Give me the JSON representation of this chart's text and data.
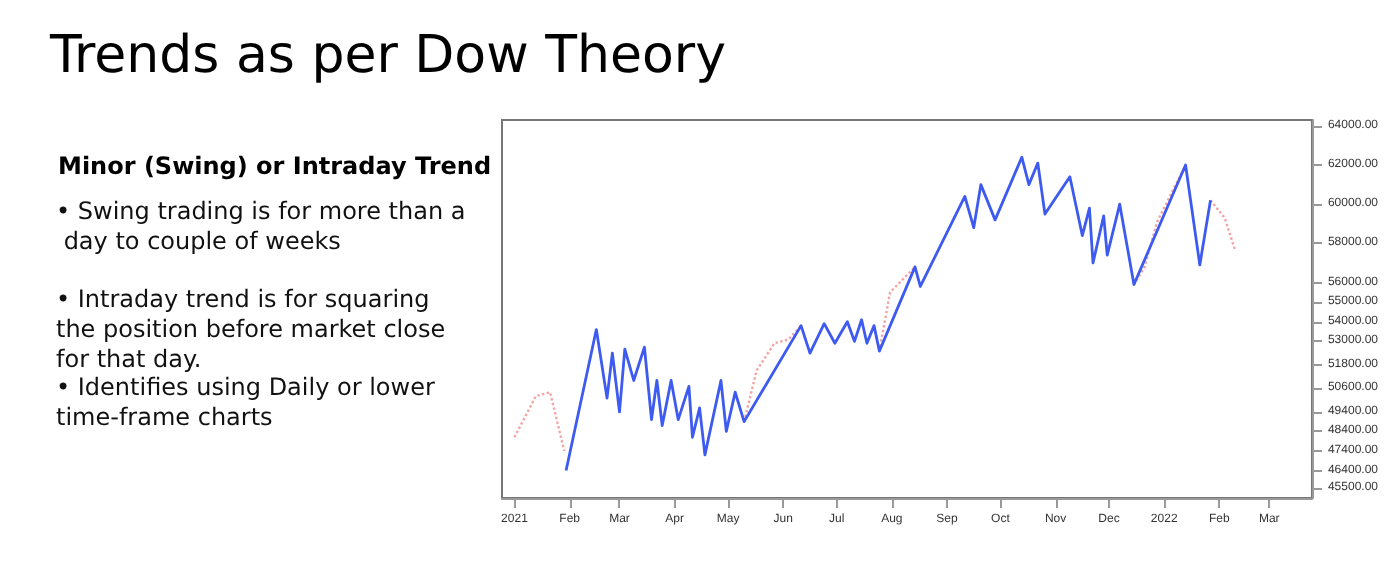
{
  "chart_data": {
    "type": "line",
    "title": "Trends as per Dow Theory",
    "subtitle": "Minor (Swing) or Intraday Trend",
    "annotations": [
      "• Swing trading is for more than a day to couple of weeks",
      "• Intraday trend is for squaring the position before market close for that day.",
      "• Identifies using Daily or lower time-frame charts"
    ],
    "series": [
      {
        "color": "#f4a3a3",
        "line_style": "dotted",
        "x": [
          "2021-01-01",
          "2021-01-13",
          "2021-01-21",
          "2021-01-29",
          "2021-04-01",
          "2021-05-10",
          "2021-05-17",
          "2021-05-27",
          "2021-06-04",
          "2021-06-11",
          "2021-07-20",
          "2021-07-25",
          "2021-07-31",
          "2021-08-14",
          "2021-10-01",
          "2021-12-15",
          "2021-12-21",
          "2021-12-28",
          "2022-01-13",
          "2022-01-20",
          "2022-01-27",
          "2022-02-04",
          "2022-02-10"
        ],
        "values": [
          48100,
          50200,
          50400,
          47400,
          null,
          48900,
          51500,
          52900,
          53100,
          53800,
          null,
          52500,
          55500,
          56800,
          null,
          55900,
          56800,
          59100,
          62000,
          null,
          60200,
          59300,
          57600
        ]
      },
      {
        "color": "#3d5af1",
        "line_style": "solid",
        "x": [
          "2021-01-30",
          "2021-02-16",
          "2021-02-22",
          "2021-02-25",
          "2021-03-01",
          "2021-03-04",
          "2021-03-09",
          "2021-03-15",
          "2021-03-19",
          "2021-03-22",
          "2021-03-25",
          "2021-03-30",
          "2021-04-03",
          "2021-04-09",
          "2021-04-11",
          "2021-04-15",
          "2021-04-18",
          "2021-04-27",
          "2021-04-30",
          "2021-05-05",
          "2021-05-10",
          "2021-06-11",
          "2021-06-16",
          "2021-06-24",
          "2021-06-30",
          "2021-07-07",
          "2021-07-11",
          "2021-07-15",
          "2021-07-18",
          "2021-07-22",
          "2021-07-25",
          "2021-08-14",
          "2021-08-17",
          "2021-09-11",
          "2021-09-16",
          "2021-09-20",
          "2021-09-28",
          "2021-10-13",
          "2021-10-17",
          "2021-10-22",
          "2021-10-26",
          "2021-11-09",
          "2021-11-16",
          "2021-11-20",
          "2021-11-22",
          "2021-11-28",
          "2021-11-30",
          "2021-12-07",
          "2021-12-15",
          "2022-01-13",
          "2022-01-21",
          "2022-01-27"
        ],
        "values": [
          46400,
          53600,
          50100,
          52400,
          49400,
          52600,
          51000,
          52700,
          49000,
          51000,
          48700,
          51000,
          49000,
          50700,
          48100,
          49600,
          47200,
          51000,
          48400,
          50400,
          48900,
          53800,
          52400,
          53900,
          52900,
          54000,
          53000,
          54100,
          52900,
          53800,
          52500,
          56800,
          55800,
          60400,
          58800,
          61000,
          59200,
          62400,
          61000,
          62100,
          59500,
          61400,
          58400,
          59800,
          57000,
          59400,
          57400,
          60000,
          55900,
          62000,
          56900,
          60200
        ]
      }
    ],
    "xlim": [
      "2020-12-25",
      "2022-03-25"
    ],
    "xticks": [
      {
        "value": "2021-01-01",
        "label": "2021"
      },
      {
        "value": "2021-02-01",
        "label": "Feb"
      },
      {
        "value": "2021-03-01",
        "label": "Mar"
      },
      {
        "value": "2021-04-01",
        "label": "Apr"
      },
      {
        "value": "2021-05-01",
        "label": "May"
      },
      {
        "value": "2021-06-01",
        "label": "Jun"
      },
      {
        "value": "2021-07-01",
        "label": "Jul"
      },
      {
        "value": "2021-08-01",
        "label": "Aug"
      },
      {
        "value": "2021-09-01",
        "label": "Sep"
      },
      {
        "value": "2021-10-01",
        "label": "Oct"
      },
      {
        "value": "2021-11-01",
        "label": "Nov"
      },
      {
        "value": "2021-12-01",
        "label": "Dec"
      },
      {
        "value": "2022-01-01",
        "label": "2022"
      },
      {
        "value": "2022-02-01",
        "label": "Feb"
      },
      {
        "value": "2022-03-01",
        "label": "Mar"
      }
    ],
    "ylim": [
      45000,
      64300
    ],
    "yticks": [
      {
        "value": 64000,
        "label": "64000.00"
      },
      {
        "value": 62000,
        "label": "62000.00"
      },
      {
        "value": 60000,
        "label": "60000.00"
      },
      {
        "value": 58000,
        "label": "58000.00"
      },
      {
        "value": 56000,
        "label": "56000.00"
      },
      {
        "value": 55000,
        "label": "55000.00"
      },
      {
        "value": 54000,
        "label": "54000.00"
      },
      {
        "value": 53000,
        "label": "53000.00"
      },
      {
        "value": 51800,
        "label": "51800.00"
      },
      {
        "value": 50600,
        "label": "50600.00"
      },
      {
        "value": 49400,
        "label": "49400.00"
      },
      {
        "value": 48400,
        "label": "48400.00"
      },
      {
        "value": 47400,
        "label": "47400.00"
      },
      {
        "value": 46400,
        "label": "46400.00"
      },
      {
        "value": 45500,
        "label": "45500.00"
      }
    ],
    "grid": false,
    "marker": "none"
  }
}
